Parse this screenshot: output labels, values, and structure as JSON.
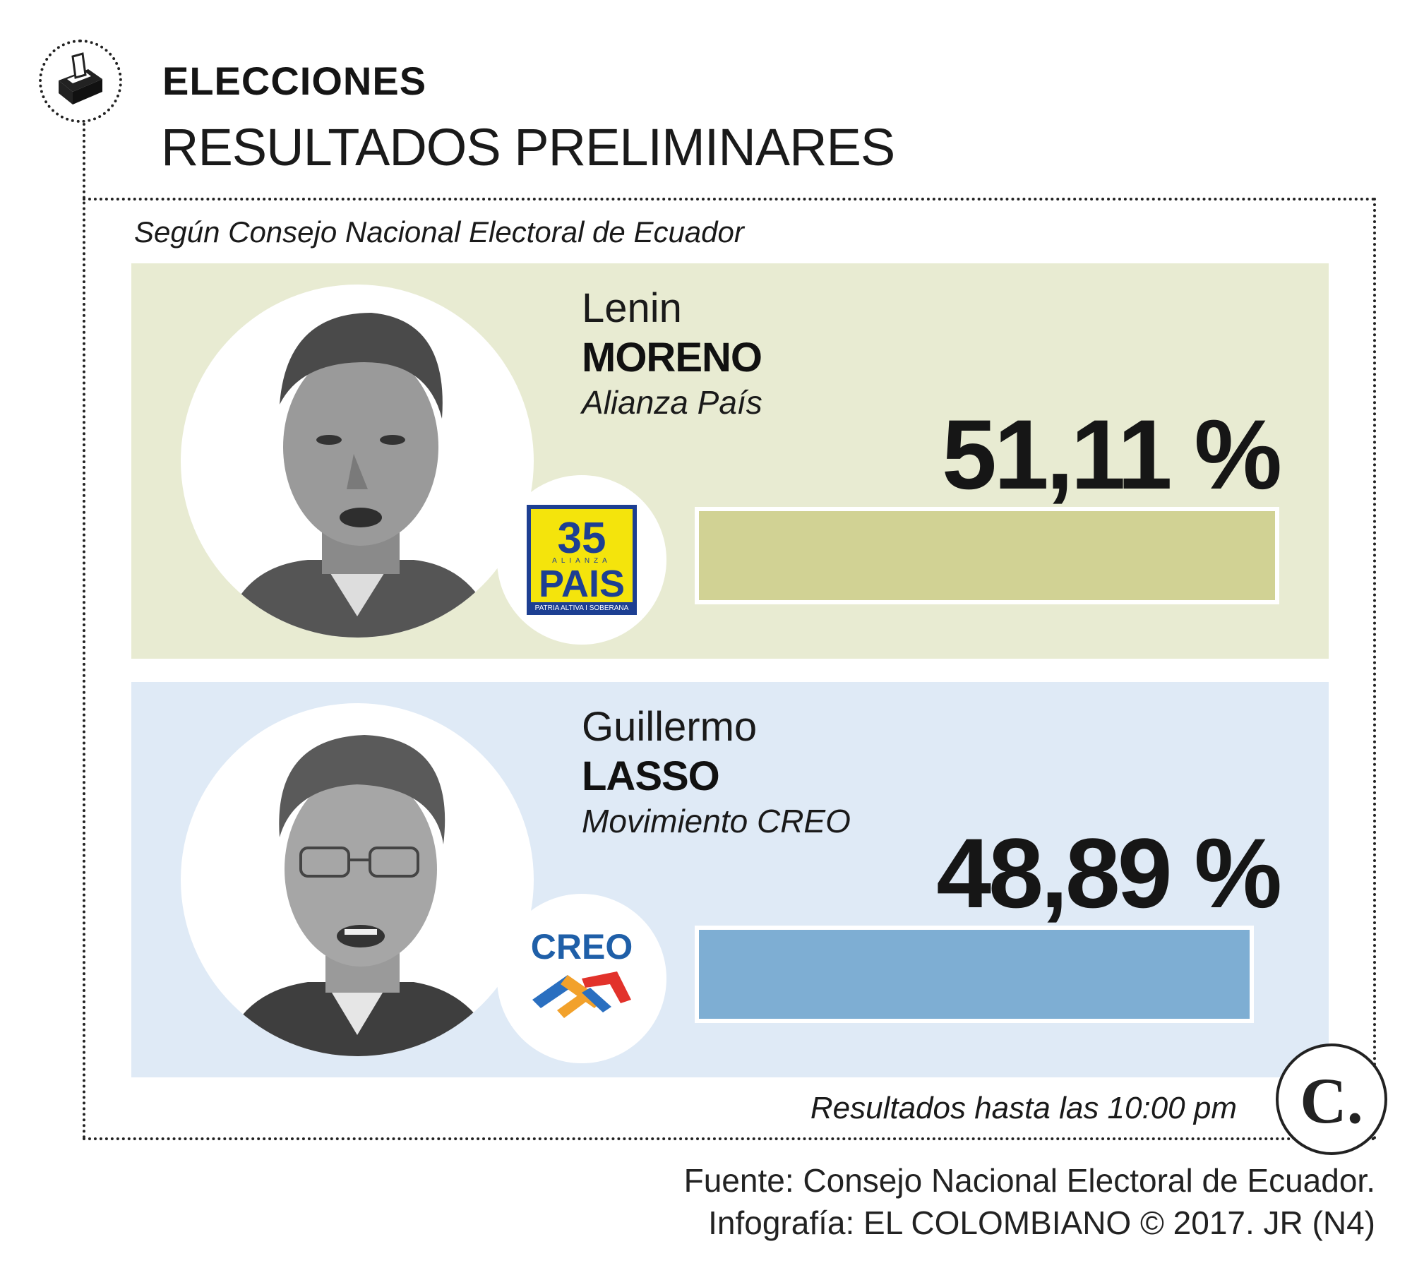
{
  "header": {
    "kicker": "ELECCIONES",
    "title": "RESULTADOS PRELIMINARES",
    "subtitle": "Según Consejo Nacional Electoral de Ecuador",
    "icon": "ballot-box-icon"
  },
  "candidates": [
    {
      "first_name": "Lenin",
      "last_name": "MORENO",
      "party": "Alianza País",
      "percent_label": "51,11 %",
      "logo": {
        "number": "35",
        "small": "ALIANZA",
        "name": "PAIS",
        "tagline": "PATRIA ALTIVA I SOBERANA"
      },
      "panel_color": "#e8ebd2",
      "bar_color": "#d1d294"
    },
    {
      "first_name": "Guillermo",
      "last_name": "LASSO",
      "party": "Movimiento CREO",
      "percent_label": "48,89 %",
      "logo": {
        "name": "CREO"
      },
      "panel_color": "#dfeaf6",
      "bar_color": "#7eaed3"
    }
  ],
  "chart_data": {
    "type": "bar",
    "orientation": "horizontal",
    "categories": [
      "Lenin MORENO",
      "Guillermo LASSO"
    ],
    "values": [
      51.11,
      48.89
    ],
    "title": "RESULTADOS PRELIMINARES",
    "xlabel": "",
    "ylabel": "",
    "xlim": [
      0,
      51.11
    ],
    "grid": false
  },
  "footer": {
    "note": "Resultados hasta las 10:00 pm",
    "brand_letter": "C.",
    "source": "Fuente: Consejo Nacional Electoral de Ecuador.",
    "credit": "Infografía: EL COLOMBIANO © 2017. JR (N4)"
  }
}
